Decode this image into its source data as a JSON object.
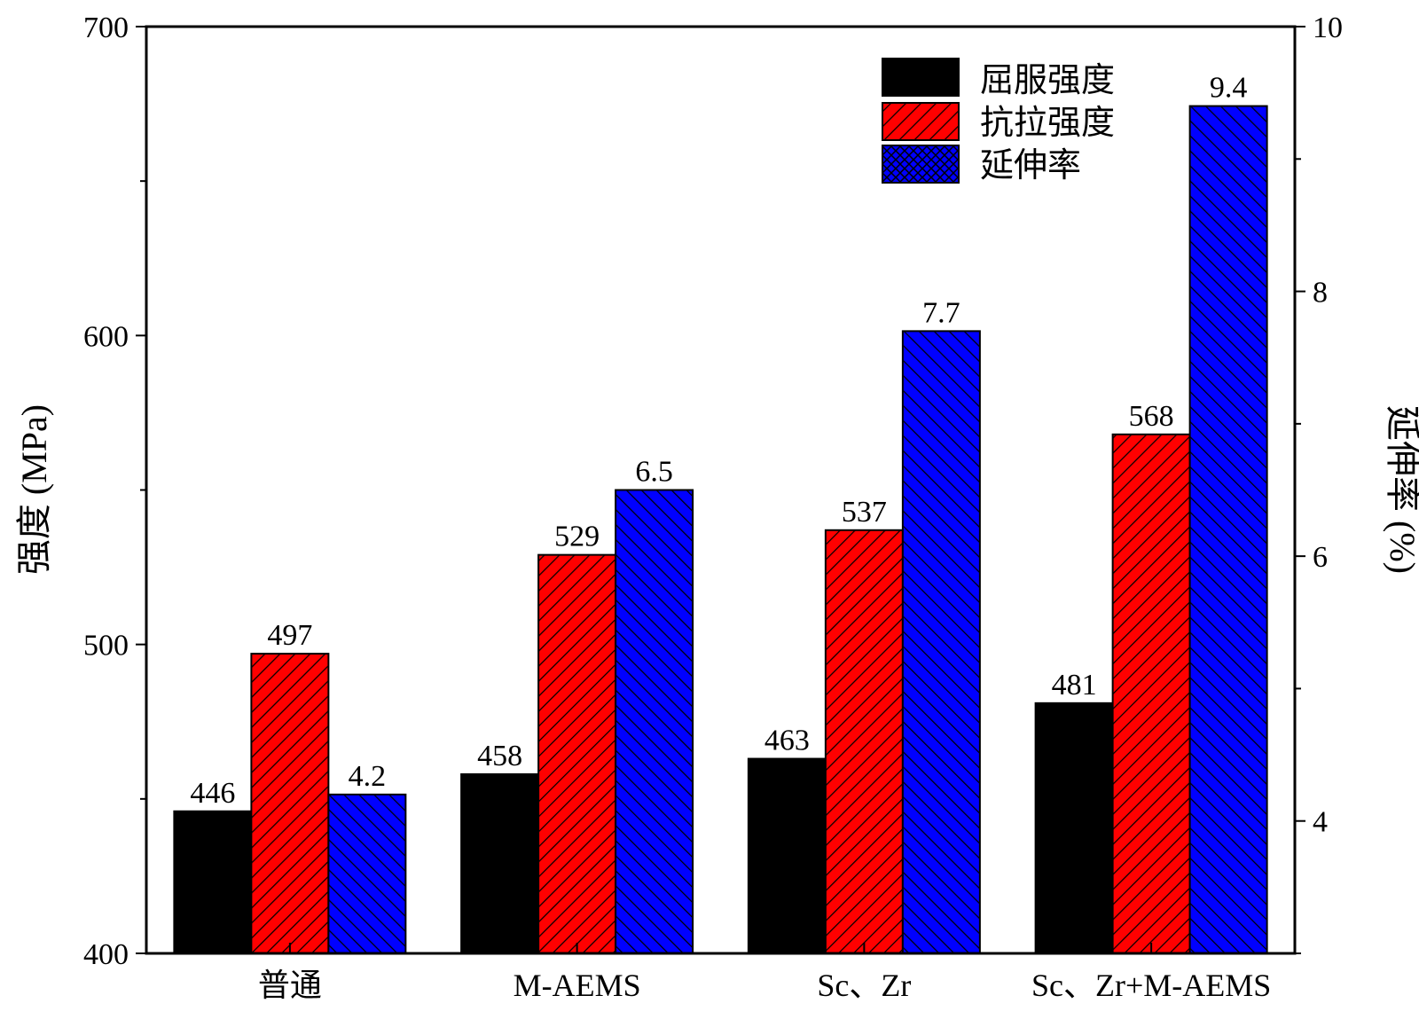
{
  "chart_data": {
    "type": "bar",
    "categories": [
      "普通",
      "M-AEMS",
      "Sc、Zr",
      "Sc、Zr+M-AEMS"
    ],
    "series": [
      {
        "name": "屈服强度",
        "axis": "left",
        "values": [
          446,
          458,
          463,
          481
        ],
        "color": "#000000",
        "pattern": "solid"
      },
      {
        "name": "抗拉强度",
        "axis": "left",
        "values": [
          497,
          529,
          537,
          568
        ],
        "color": "#ff0000",
        "pattern": "hatch"
      },
      {
        "name": "延伸率",
        "axis": "right",
        "values": [
          4.2,
          6.5,
          7.7,
          9.4
        ],
        "color": "#0000ff",
        "pattern": "hatch"
      }
    ],
    "value_labels": [
      [
        "446",
        "458",
        "463",
        "481"
      ],
      [
        "497",
        "529",
        "537",
        "568"
      ],
      [
        "4.2",
        "6.5",
        "7.7",
        "9.4"
      ]
    ],
    "ylabel": "强度 (MPa)",
    "ylim": [
      400,
      700
    ],
    "yticks": [
      "400",
      "500",
      "600",
      "700"
    ],
    "y2label": "延伸率 (%)",
    "y2lim": [
      3,
      10
    ],
    "y2ticks": [
      "4",
      "6",
      "8",
      "10"
    ],
    "legend_position": "top-right",
    "grid": false
  }
}
